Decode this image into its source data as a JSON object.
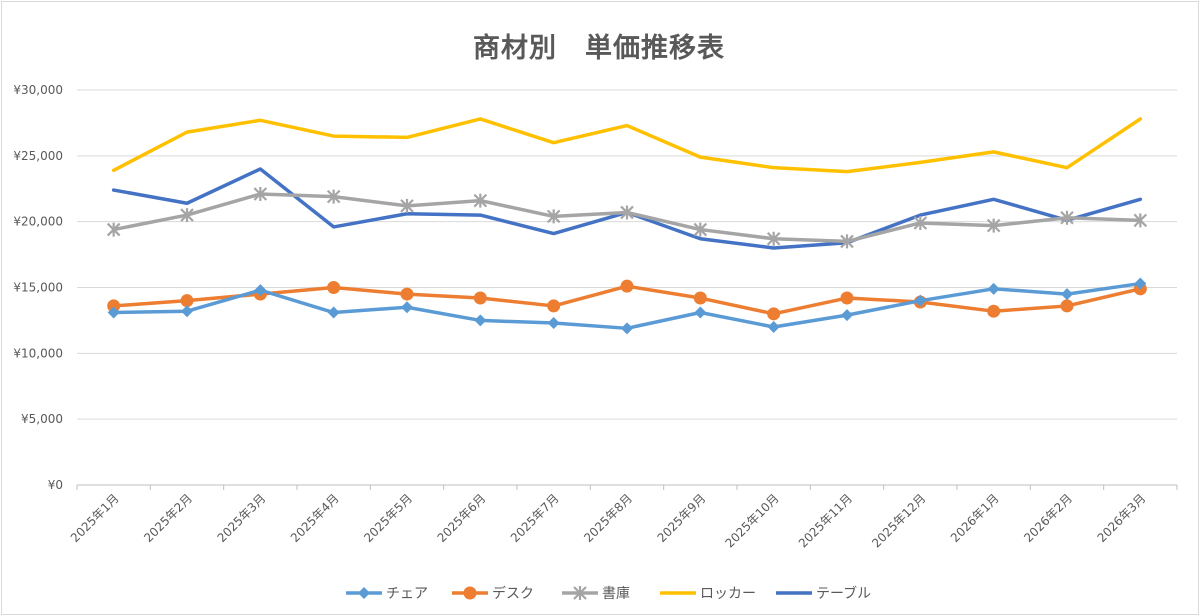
{
  "chart_data": {
    "type": "line",
    "title": "商材別　単価推移表",
    "xlabel": "",
    "ylabel": "",
    "ylim": [
      0,
      30000
    ],
    "yticks": [
      0,
      5000,
      10000,
      15000,
      20000,
      25000,
      30000
    ],
    "ytick_labels": [
      "¥0",
      "¥5,000",
      "¥10,000",
      "¥15,000",
      "¥20,000",
      "¥25,000",
      "¥30,000"
    ],
    "grid": true,
    "legend": "bottom",
    "categories": [
      "2025年1月",
      "2025年2月",
      "2025年3月",
      "2025年4月",
      "2025年5月",
      "2025年6月",
      "2025年7月",
      "2025年8月",
      "2025年9月",
      "2025年10月",
      "2025年11月",
      "2025年12月",
      "2026年1月",
      "2026年2月",
      "2026年3月"
    ],
    "series": [
      {
        "name": "チェア",
        "color": "#5b9bd5",
        "marker": "diamond",
        "values": [
          13100,
          13200,
          14800,
          13100,
          13500,
          12500,
          12300,
          11900,
          13100,
          12000,
          12900,
          14000,
          14900,
          14500,
          15300
        ]
      },
      {
        "name": "デスク",
        "color": "#ed7d31",
        "marker": "circle",
        "values": [
          13600,
          14000,
          14500,
          15000,
          14500,
          14200,
          13600,
          15100,
          14200,
          13000,
          14200,
          13900,
          13200,
          13600,
          14900
        ]
      },
      {
        "name": "書庫",
        "color": "#a5a5a5",
        "marker": "asterisk",
        "values": [
          19400,
          20500,
          22100,
          21900,
          21200,
          21600,
          20400,
          20700,
          19400,
          18700,
          18500,
          19900,
          19700,
          20300,
          20100
        ]
      },
      {
        "name": "ロッカー",
        "color": "#ffc000",
        "marker": "none",
        "values": [
          23900,
          26800,
          27700,
          26500,
          26400,
          27800,
          26000,
          27300,
          24900,
          24100,
          23800,
          24500,
          25300,
          24100,
          27800
        ]
      },
      {
        "name": "テーブル",
        "color": "#4472c4",
        "marker": "none",
        "values": [
          22400,
          21400,
          24000,
          19600,
          20600,
          20500,
          19100,
          20700,
          18700,
          18000,
          18400,
          20500,
          21700,
          20100,
          21700
        ]
      }
    ]
  }
}
